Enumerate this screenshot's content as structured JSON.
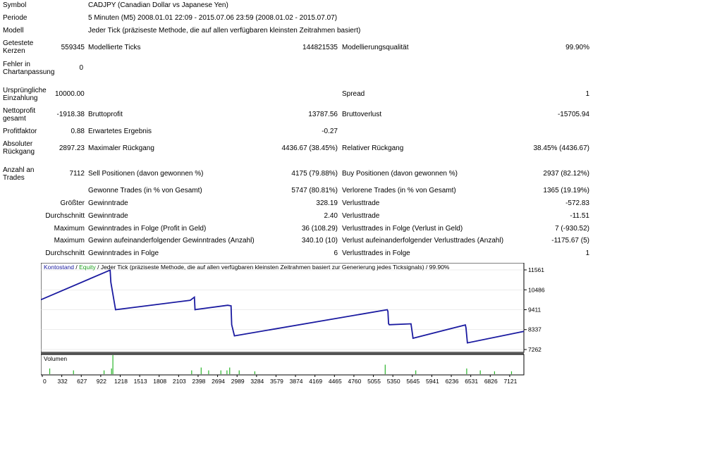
{
  "report": {
    "symbol": {
      "label": "Symbol",
      "value": "CADJPY (Canadian Dollar vs Japanese Yen)"
    },
    "period": {
      "label": "Periode",
      "value": "5 Minuten (M5) 2008.01.01 22:09 - 2015.07.06 23:59 (2008.01.02 - 2015.07.07)"
    },
    "model": {
      "label": "Modell",
      "value": "Jeder Tick (präziseste Methode, die auf allen verfügbaren kleinsten Zeitrahmen basiert)"
    },
    "bars_tested": {
      "label_1": "Getestete",
      "label_2": "Kerzen",
      "value": "559345"
    },
    "ticks_modelled": {
      "label": "Modellierte Ticks",
      "value": "144821535"
    },
    "modelling_quality": {
      "label": "Modellierungsqualität",
      "value": "99.90%"
    },
    "mismatched_errors": {
      "label_1": "Fehler in",
      "label_2": "Chartanpassung",
      "value": "0"
    },
    "initial_deposit": {
      "label_1": "Ursprüngliche",
      "label_2": "Einzahlung",
      "value": "10000.00"
    },
    "spread": {
      "label": "Spread",
      "value": "1"
    },
    "net_profit": {
      "label_1": "Nettoprofit",
      "label_2": "gesamt",
      "value": "-1918.38"
    },
    "gross_profit": {
      "label": "Bruttoprofit",
      "value": "13787.56"
    },
    "gross_loss": {
      "label": "Bruttoverlust",
      "value": "-15705.94"
    },
    "profit_factor": {
      "label": "Profitfaktor",
      "value": "0.88"
    },
    "expected_payoff": {
      "label": "Erwartetes Ergebnis",
      "value": "-0.27"
    },
    "absolute_drawdown": {
      "label_1": "Absoluter",
      "label_2": "Rückgang",
      "value": "2897.23"
    },
    "maximal_drawdown": {
      "label": "Maximaler Rückgang",
      "value": "4436.67 (38.45%)"
    },
    "relative_drawdown": {
      "label": "Relativer Rückgang",
      "value": "38.45% (4436.67)"
    },
    "total_trades": {
      "label_1": "Anzahl an",
      "label_2": "Trades",
      "value": "7112"
    },
    "short_positions": {
      "label": "Sell Positionen (davon gewonnen %)",
      "value": "4175 (79.88%)"
    },
    "long_positions": {
      "label": "Buy Positionen (davon gewonnen %)",
      "value": "2937 (82.12%)"
    },
    "profit_trades": {
      "label": "Gewonne Trades (in % von Gesamt)",
      "value": "5747 (80.81%)"
    },
    "loss_trades": {
      "label": "Verlorene Trades (in % von Gesamt)",
      "value": "1365 (19.19%)"
    },
    "largest": {
      "prefix": "Größter",
      "profit_label": "Gewinntrade",
      "profit_value": "328.19",
      "loss_label": "Verlusttrade",
      "loss_value": "-572.83"
    },
    "average": {
      "prefix": "Durchschnitt",
      "profit_label": "Gewinntrade",
      "profit_value": "2.40",
      "loss_label": "Verlusttrade",
      "loss_value": "-11.51"
    },
    "max_consecutive": {
      "prefix": "Maximum",
      "win_label": "Gewinntrades in Folge (Profit in Geld)",
      "win_value": "36 (108.29)",
      "loss_label": "Verlusttrades in Folge (Verlust in Geld)",
      "loss_value": "7 (-930.52)"
    },
    "max_consecutive_amount": {
      "prefix": "Maximum",
      "win_label": "Gewinn aufeinanderfolgender Gewinntrades (Anzahl)",
      "win_value": "340.10 (10)",
      "loss_label": "Verlust aufeinanderfolgender Verlusttrades (Anzahl)",
      "loss_value": "-1175.67 (5)"
    },
    "average_consecutive": {
      "prefix": "Durchschnitt",
      "win_label": "Gewinntrades in Folge",
      "win_value": "6",
      "loss_label": "Verlusttrades in Folge",
      "loss_value": "1"
    }
  },
  "chart_data": {
    "type": "line",
    "header": {
      "balance": "Kontostand",
      "sep": " / ",
      "equity": "Equity",
      "rest": " / Jeder Tick (präziseste Methode, die auf allen verfügbaren kleinsten Zeitrahmen basiert zur Generierung jedes Ticksignals) / 99.90%"
    },
    "colors": {
      "balance": "#1a1aa0",
      "equity": "#1fa01f",
      "volume": "#2bb52b",
      "grid": "#d8d8d8"
    },
    "y_ticks": [
      11561,
      10486,
      9411,
      8337,
      7262
    ],
    "ylim": [
      7262,
      11561
    ],
    "x_ticks": [
      "0",
      "332",
      "627",
      "922",
      "1218",
      "1513",
      "1808",
      "2103",
      "2398",
      "2694",
      "2989",
      "3284",
      "3579",
      "3874",
      "4169",
      "4465",
      "4760",
      "5055",
      "5350",
      "5645",
      "5941",
      "6236",
      "6531",
      "6826",
      "7121"
    ],
    "xlim": [
      0,
      7112
    ],
    "balance": {
      "x": [
        0,
        1020,
        1030,
        1100,
        2200,
        2260,
        2270,
        2300,
        2750,
        2800,
        2810,
        2850,
        5100,
        5110,
        5120,
        5130,
        5450,
        5470,
        5480,
        6250,
        6260,
        6280,
        7112
      ],
      "y": [
        9950,
        11550,
        10900,
        9410,
        9920,
        10090,
        9410,
        9430,
        9650,
        9620,
        8600,
        8000,
        9410,
        9320,
        8660,
        8600,
        8650,
        8150,
        7870,
        8590,
        8430,
        7620,
        8240
      ]
    },
    "volume_label": "Volumen",
    "volume": {
      "x": [
        130,
        480,
        930,
        1040,
        1060,
        2220,
        2360,
        2470,
        2650,
        2740,
        2780,
        2920,
        3150,
        5070,
        5520,
        6270,
        6470,
        6680,
        6930
      ],
      "v": [
        0.3,
        0.2,
        0.2,
        0.3,
        1.0,
        0.2,
        0.35,
        0.2,
        0.2,
        0.2,
        0.35,
        0.2,
        0.15,
        0.5,
        0.2,
        0.3,
        0.2,
        0.15,
        0.15
      ]
    }
  }
}
